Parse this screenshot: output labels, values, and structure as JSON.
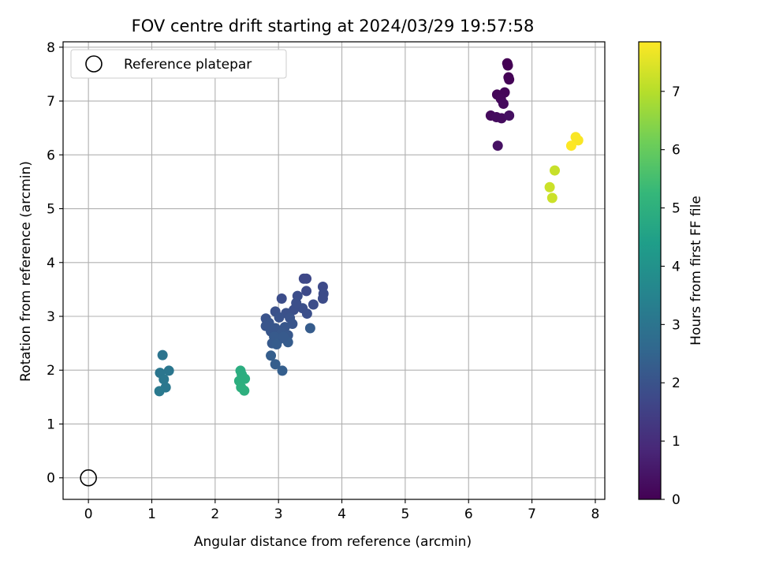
{
  "chart_data": {
    "type": "scatter",
    "title": "FOV centre drift starting at 2024/03/29 19:57:58",
    "xlabel": "Angular distance from reference (arcmin)",
    "ylabel": "Rotation from reference (arcmin)",
    "xlim": [
      -0.4,
      8.15
    ],
    "ylim": [
      -0.4,
      8.1
    ],
    "xticks": [
      "0",
      "1",
      "2",
      "3",
      "4",
      "5",
      "6",
      "7",
      "8"
    ],
    "yticks": [
      "0",
      "1",
      "2",
      "3",
      "4",
      "5",
      "6",
      "7",
      "8"
    ],
    "grid": true,
    "legend": {
      "position": "top-left",
      "entries": [
        "Reference platepar"
      ]
    },
    "reference_point": {
      "x": 0,
      "y": 0,
      "marker": "open-circle",
      "color": "#000000"
    },
    "colorbar": {
      "label": "Hours from first FF file",
      "range": [
        0,
        7.85
      ],
      "ticks": [
        "0",
        "1",
        "2",
        "3",
        "4",
        "5",
        "6",
        "7"
      ],
      "colormap": "viridis"
    },
    "points": [
      {
        "x": 6.61,
        "y": 7.7,
        "h": 0.0
      },
      {
        "x": 6.62,
        "y": 7.66,
        "h": 0.0
      },
      {
        "x": 6.63,
        "y": 7.44,
        "h": 0.0
      },
      {
        "x": 6.64,
        "y": 7.4,
        "h": 0.05
      },
      {
        "x": 6.45,
        "y": 7.12,
        "h": 0.1
      },
      {
        "x": 6.57,
        "y": 7.16,
        "h": 0.1
      },
      {
        "x": 6.51,
        "y": 7.04,
        "h": 0.15
      },
      {
        "x": 6.55,
        "y": 6.95,
        "h": 0.2
      },
      {
        "x": 6.35,
        "y": 6.73,
        "h": 0.2
      },
      {
        "x": 6.44,
        "y": 6.7,
        "h": 0.25
      },
      {
        "x": 6.52,
        "y": 6.68,
        "h": 0.25
      },
      {
        "x": 6.64,
        "y": 6.73,
        "h": 0.3
      },
      {
        "x": 6.46,
        "y": 6.17,
        "h": 0.35
      },
      {
        "x": 3.4,
        "y": 3.7,
        "h": 1.7
      },
      {
        "x": 3.44,
        "y": 3.7,
        "h": 1.7
      },
      {
        "x": 3.7,
        "y": 3.55,
        "h": 1.75
      },
      {
        "x": 3.44,
        "y": 3.47,
        "h": 1.75
      },
      {
        "x": 3.71,
        "y": 3.42,
        "h": 1.8
      },
      {
        "x": 3.7,
        "y": 3.33,
        "h": 1.8
      },
      {
        "x": 3.3,
        "y": 3.38,
        "h": 1.85
      },
      {
        "x": 3.05,
        "y": 3.33,
        "h": 1.85
      },
      {
        "x": 3.55,
        "y": 3.22,
        "h": 1.85
      },
      {
        "x": 3.38,
        "y": 3.15,
        "h": 1.9
      },
      {
        "x": 3.24,
        "y": 3.12,
        "h": 1.9
      },
      {
        "x": 3.45,
        "y": 3.05,
        "h": 1.9
      },
      {
        "x": 2.95,
        "y": 3.09,
        "h": 1.95
      },
      {
        "x": 3.12,
        "y": 3.06,
        "h": 1.95
      },
      {
        "x": 2.8,
        "y": 2.96,
        "h": 2.0
      },
      {
        "x": 3.01,
        "y": 2.98,
        "h": 2.0
      },
      {
        "x": 3.18,
        "y": 2.97,
        "h": 2.0
      },
      {
        "x": 2.85,
        "y": 2.88,
        "h": 2.05
      },
      {
        "x": 3.22,
        "y": 2.86,
        "h": 2.05
      },
      {
        "x": 2.8,
        "y": 2.82,
        "h": 2.05
      },
      {
        "x": 2.95,
        "y": 2.78,
        "h": 2.1
      },
      {
        "x": 3.1,
        "y": 2.8,
        "h": 2.1
      },
      {
        "x": 2.88,
        "y": 2.72,
        "h": 2.1
      },
      {
        "x": 3.05,
        "y": 2.69,
        "h": 2.15
      },
      {
        "x": 3.15,
        "y": 2.65,
        "h": 2.15
      },
      {
        "x": 2.93,
        "y": 2.62,
        "h": 2.2
      },
      {
        "x": 3.02,
        "y": 2.58,
        "h": 2.2
      },
      {
        "x": 2.9,
        "y": 2.5,
        "h": 2.2
      },
      {
        "x": 2.97,
        "y": 2.48,
        "h": 2.25
      },
      {
        "x": 3.15,
        "y": 2.52,
        "h": 2.25
      },
      {
        "x": 3.5,
        "y": 2.78,
        "h": 2.25
      },
      {
        "x": 2.88,
        "y": 2.27,
        "h": 2.3
      },
      {
        "x": 2.95,
        "y": 2.11,
        "h": 2.3
      },
      {
        "x": 3.06,
        "y": 1.99,
        "h": 2.35
      },
      {
        "x": 3.08,
        "y": 2.62,
        "h": 2.2
      },
      {
        "x": 3.28,
        "y": 3.25,
        "h": 1.9
      },
      {
        "x": 1.17,
        "y": 2.28,
        "h": 3.0
      },
      {
        "x": 1.27,
        "y": 1.99,
        "h": 3.05
      },
      {
        "x": 1.13,
        "y": 1.95,
        "h": 3.05
      },
      {
        "x": 1.19,
        "y": 1.83,
        "h": 3.1
      },
      {
        "x": 1.22,
        "y": 1.68,
        "h": 3.1
      },
      {
        "x": 1.12,
        "y": 1.61,
        "h": 3.15
      },
      {
        "x": 2.4,
        "y": 1.99,
        "h": 4.9
      },
      {
        "x": 2.42,
        "y": 1.92,
        "h": 4.9
      },
      {
        "x": 2.38,
        "y": 1.8,
        "h": 4.95
      },
      {
        "x": 2.47,
        "y": 1.84,
        "h": 4.95
      },
      {
        "x": 2.41,
        "y": 1.68,
        "h": 5.0
      },
      {
        "x": 2.46,
        "y": 1.62,
        "h": 5.0
      },
      {
        "x": 7.36,
        "y": 5.71,
        "h": 7.2
      },
      {
        "x": 7.28,
        "y": 5.4,
        "h": 7.25
      },
      {
        "x": 7.32,
        "y": 5.2,
        "h": 7.25
      },
      {
        "x": 7.69,
        "y": 6.33,
        "h": 7.8
      },
      {
        "x": 7.73,
        "y": 6.27,
        "h": 7.8
      },
      {
        "x": 7.62,
        "y": 6.17,
        "h": 7.85
      }
    ]
  }
}
